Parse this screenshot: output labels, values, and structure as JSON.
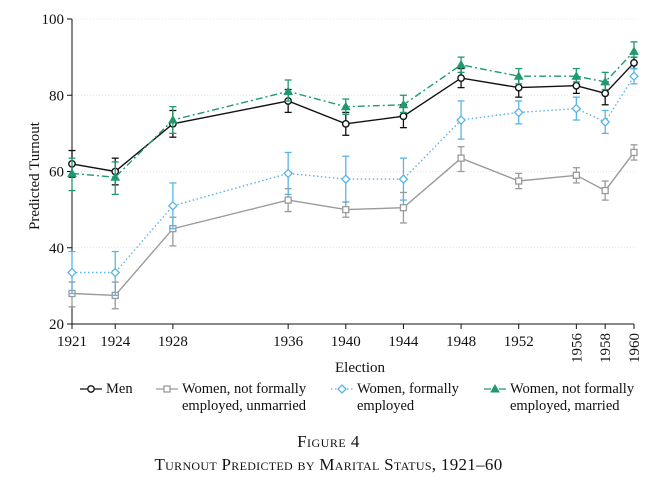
{
  "chart_data": {
    "type": "line",
    "ylabel": "Predicted Turnout",
    "xlabel": "Election",
    "ylim": [
      20,
      100
    ],
    "yticks": [
      20,
      40,
      60,
      80,
      100
    ],
    "x": [
      1921,
      1924,
      1928,
      1936,
      1940,
      1944,
      1948,
      1952,
      1956,
      1958,
      1960
    ],
    "x_tick_labels": [
      "1921",
      "1924",
      "1928",
      "1936",
      "1940",
      "1944",
      "1948",
      "1952",
      "1956",
      "1958",
      "1960"
    ],
    "grid": true,
    "legend_position": "bottom",
    "series": [
      {
        "name": "Men",
        "color": "#111111",
        "style": "solid",
        "marker": "circle",
        "values": [
          62,
          60,
          72.5,
          78.5,
          72.5,
          74.5,
          84.5,
          82,
          82.5,
          80.5,
          88.5
        ],
        "ci_low": [
          58.5,
          56.5,
          69,
          75.5,
          69.5,
          71.5,
          82,
          79.5,
          80.5,
          77.5,
          87
        ],
        "ci_high": [
          65.5,
          63.5,
          76,
          81.5,
          75.5,
          77.5,
          87,
          84.5,
          84.5,
          83.5,
          90
        ]
      },
      {
        "name": "Women, not formally employed, unmarried",
        "color": "#9a9a9a",
        "style": "solid",
        "marker": "square",
        "values": [
          28,
          27.5,
          45,
          52.5,
          50,
          50.5,
          63.5,
          57.5,
          59,
          55,
          65
        ],
        "ci_low": [
          24.5,
          24,
          40.5,
          49.5,
          48,
          46.5,
          60,
          55.5,
          57,
          52.5,
          63
        ],
        "ci_high": [
          31,
          31,
          48,
          55.5,
          52,
          54.5,
          66.5,
          59.5,
          61,
          57.5,
          67
        ]
      },
      {
        "name": "Women, formally employed",
        "color": "#5ab4e5",
        "style": "dotted",
        "marker": "diamond",
        "values": [
          33.5,
          33.5,
          51,
          59.5,
          58,
          58,
          73.5,
          75.5,
          76.5,
          73,
          85
        ],
        "ci_low": [
          28,
          27.5,
          45,
          54,
          52,
          52.5,
          68.5,
          72.5,
          73.5,
          70,
          83
        ],
        "ci_high": [
          39,
          39,
          57,
          65,
          64,
          63.5,
          78.5,
          78.5,
          79.5,
          76,
          87
        ]
      },
      {
        "name": "Women, not formally employed, married",
        "color": "#1e9a6c",
        "style": "dashdot",
        "marker": "triangle",
        "values": [
          59.5,
          58.5,
          73.5,
          81,
          77,
          77.5,
          88,
          85,
          85,
          83.5,
          91.5
        ],
        "ci_low": [
          55,
          54,
          70,
          78.5,
          75,
          75.5,
          86,
          83,
          83.5,
          81.5,
          90
        ],
        "ci_high": [
          63.5,
          62.5,
          77,
          84,
          79,
          80,
          90,
          87,
          87,
          86,
          94
        ]
      }
    ]
  },
  "caption": {
    "label": "Figure 4",
    "title": "Turnout Predicted by Marital Status, 1921–60"
  },
  "legend": {
    "men": "Men",
    "unmarried": [
      "Women, not formally",
      "employed, unmarried"
    ],
    "employed": [
      "Women, formally",
      "employed"
    ],
    "married": [
      "Women, not formally",
      "employed, married"
    ]
  }
}
